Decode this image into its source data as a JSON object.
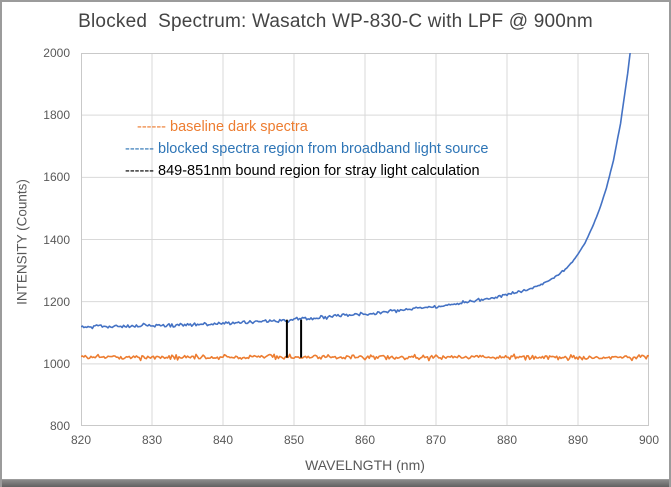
{
  "window": {
    "background": "#ffffff",
    "border_color": "#9b9b9b",
    "bottom_edge_color": "#6f6f6f"
  },
  "chart_data": {
    "type": "line",
    "title": "Blocked  Spectrum: Wasatch WP-830-C with LPF @ 900nm",
    "xlabel": "WAVELNGTH (nm)",
    "ylabel": "INTENSITY (Counts)",
    "xlim": [
      820,
      900
    ],
    "ylim": [
      800,
      2000
    ],
    "x_ticks": [
      820,
      830,
      840,
      850,
      860,
      870,
      880,
      890,
      900
    ],
    "y_ticks": [
      800,
      1000,
      1200,
      1400,
      1600,
      1800,
      2000
    ],
    "grid": true,
    "gridline_color": "#d9d9d9",
    "axis_text_color": "#595959",
    "legend_position": "upper-left-inside",
    "legend": [
      {
        "text": "------ baseline dark spectra",
        "color": "#ED7D31"
      },
      {
        "text": "------ blocked spectra region from broadband light source",
        "color": "#2E75B6"
      },
      {
        "text": "------ 849-851nm bound region for stray light calculation",
        "color": "#000000"
      }
    ],
    "series": [
      {
        "name": "baseline dark spectra",
        "color": "#ED7D31",
        "style": "noisy-line",
        "noise_amplitude": 7,
        "step_nm": 0.2,
        "trend_points": [
          [
            820,
            1022
          ],
          [
            830,
            1021
          ],
          [
            840,
            1022
          ],
          [
            850,
            1021
          ],
          [
            860,
            1022
          ],
          [
            870,
            1021
          ],
          [
            880,
            1022
          ],
          [
            890,
            1021
          ],
          [
            900,
            1021
          ]
        ]
      },
      {
        "name": "blocked spectra region from broadband light source",
        "color": "#4472C4",
        "style": "noisy-line",
        "noise_amplitude": 6,
        "step_nm": 0.2,
        "clipped_at_ymax": true,
        "trend_points": [
          [
            820,
            1118
          ],
          [
            823,
            1120
          ],
          [
            826,
            1121
          ],
          [
            829,
            1123
          ],
          [
            832,
            1124
          ],
          [
            835,
            1126
          ],
          [
            838,
            1128
          ],
          [
            841,
            1131
          ],
          [
            844,
            1134
          ],
          [
            847,
            1138
          ],
          [
            850,
            1142
          ],
          [
            853,
            1147
          ],
          [
            856,
            1153
          ],
          [
            859,
            1159
          ],
          [
            862,
            1165
          ],
          [
            865,
            1172
          ],
          [
            868,
            1180
          ],
          [
            871,
            1188
          ],
          [
            874,
            1198
          ],
          [
            877,
            1209
          ],
          [
            880,
            1222
          ],
          [
            882,
            1233
          ],
          [
            884,
            1247
          ],
          [
            886,
            1268
          ],
          [
            888,
            1300
          ],
          [
            889,
            1322
          ],
          [
            890,
            1352
          ],
          [
            891,
            1390
          ],
          [
            892,
            1438
          ],
          [
            893,
            1495
          ],
          [
            894,
            1565
          ],
          [
            895,
            1655
          ],
          [
            896,
            1775
          ],
          [
            897,
            1935
          ],
          [
            897.5,
            2030
          ],
          [
            898,
            2150
          ],
          [
            898.5,
            2300
          ]
        ]
      }
    ],
    "bound_region": {
      "name": "849-851nm bound region for stray light calculation",
      "x_values": [
        849,
        851
      ],
      "y_from": 1020,
      "y_to": 1142,
      "color": "#000000",
      "line_width": 2
    }
  }
}
